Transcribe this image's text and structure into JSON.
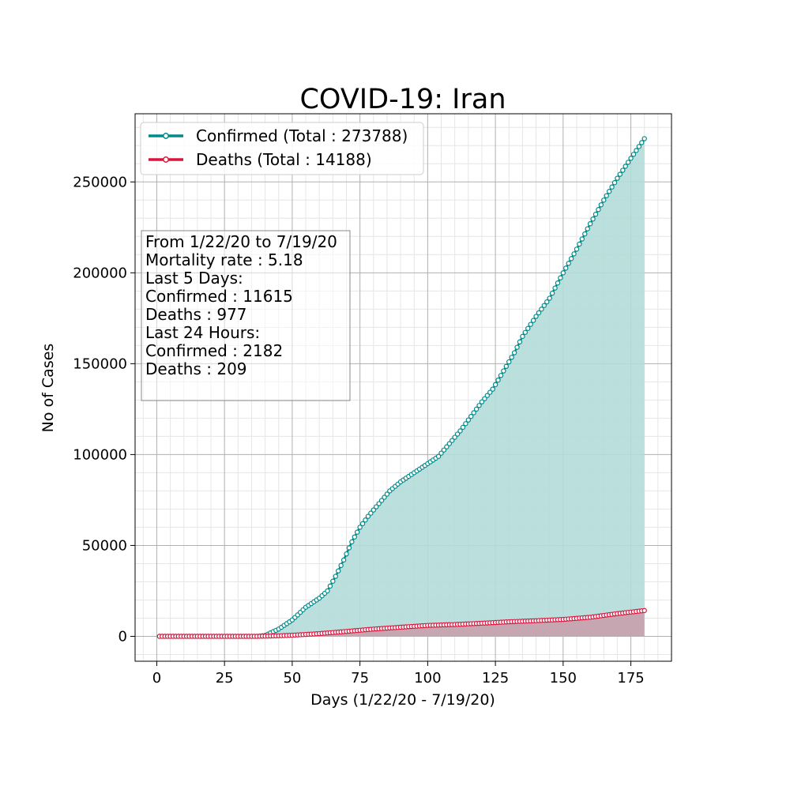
{
  "chart_data": {
    "type": "area",
    "title": "COVID-19: Iran",
    "xlabel": "Days (1/22/20 - 7/19/20)",
    "ylabel": "No of Cases",
    "xlim": [
      -8,
      190
    ],
    "ylim": [
      -13700,
      287500
    ],
    "xticks": [
      "0",
      "25",
      "50",
      "75",
      "100",
      "125",
      "150",
      "175"
    ],
    "yticks": [
      "0",
      "50000",
      "100000",
      "150000",
      "200000",
      "250000"
    ],
    "xtick_values": [
      0,
      25,
      50,
      75,
      100,
      125,
      150,
      175
    ],
    "ytick_values": [
      0,
      50000,
      100000,
      150000,
      200000,
      250000
    ],
    "grid": true,
    "legend_position": "top-left",
    "x_start": 1,
    "x_end": 180,
    "series": [
      {
        "name": "Confirmed (Total : 273788)",
        "color": "#008b8b",
        "fill": "#b2dbd8",
        "knots": [
          [
            1,
            0
          ],
          [
            37,
            0
          ],
          [
            40,
            500
          ],
          [
            45,
            4000
          ],
          [
            50,
            9000
          ],
          [
            55,
            16000
          ],
          [
            60,
            21000
          ],
          [
            63,
            25000
          ],
          [
            66,
            33000
          ],
          [
            69,
            42000
          ],
          [
            72,
            52000
          ],
          [
            75,
            60000
          ],
          [
            78,
            66000
          ],
          [
            82,
            73000
          ],
          [
            86,
            80000
          ],
          [
            90,
            85000
          ],
          [
            95,
            90000
          ],
          [
            100,
            95000
          ],
          [
            104,
            99000
          ],
          [
            108,
            106000
          ],
          [
            112,
            113000
          ],
          [
            116,
            121000
          ],
          [
            120,
            129000
          ],
          [
            124,
            136000
          ],
          [
            128,
            146000
          ],
          [
            132,
            156000
          ],
          [
            135,
            165000
          ],
          [
            140,
            176000
          ],
          [
            145,
            186000
          ],
          [
            150,
            200000
          ],
          [
            155,
            213000
          ],
          [
            160,
            227000
          ],
          [
            165,
            240000
          ],
          [
            170,
            252000
          ],
          [
            175,
            263000
          ],
          [
            180,
            273788
          ]
        ]
      },
      {
        "name": "Deaths (Total : 14188)",
        "color": "#dc143c",
        "fill": "#c8a0ac",
        "knots": [
          [
            1,
            0
          ],
          [
            37,
            0
          ],
          [
            45,
            300
          ],
          [
            50,
            600
          ],
          [
            60,
            1500
          ],
          [
            70,
            2700
          ],
          [
            80,
            4000
          ],
          [
            90,
            5000
          ],
          [
            100,
            6000
          ],
          [
            110,
            6500
          ],
          [
            120,
            7200
          ],
          [
            130,
            8000
          ],
          [
            140,
            8600
          ],
          [
            150,
            9300
          ],
          [
            160,
            10500
          ],
          [
            170,
            12500
          ],
          [
            180,
            14188
          ]
        ]
      }
    ]
  },
  "info_box": {
    "lines": [
      "From 1/22/20 to 7/19/20",
      "Mortality rate : 5.18",
      "Last 5 Days:",
      "Confirmed : 11615",
      "Deaths : 977",
      "Last 24 Hours:",
      "Confirmed : 2182",
      "Deaths : 209"
    ]
  }
}
